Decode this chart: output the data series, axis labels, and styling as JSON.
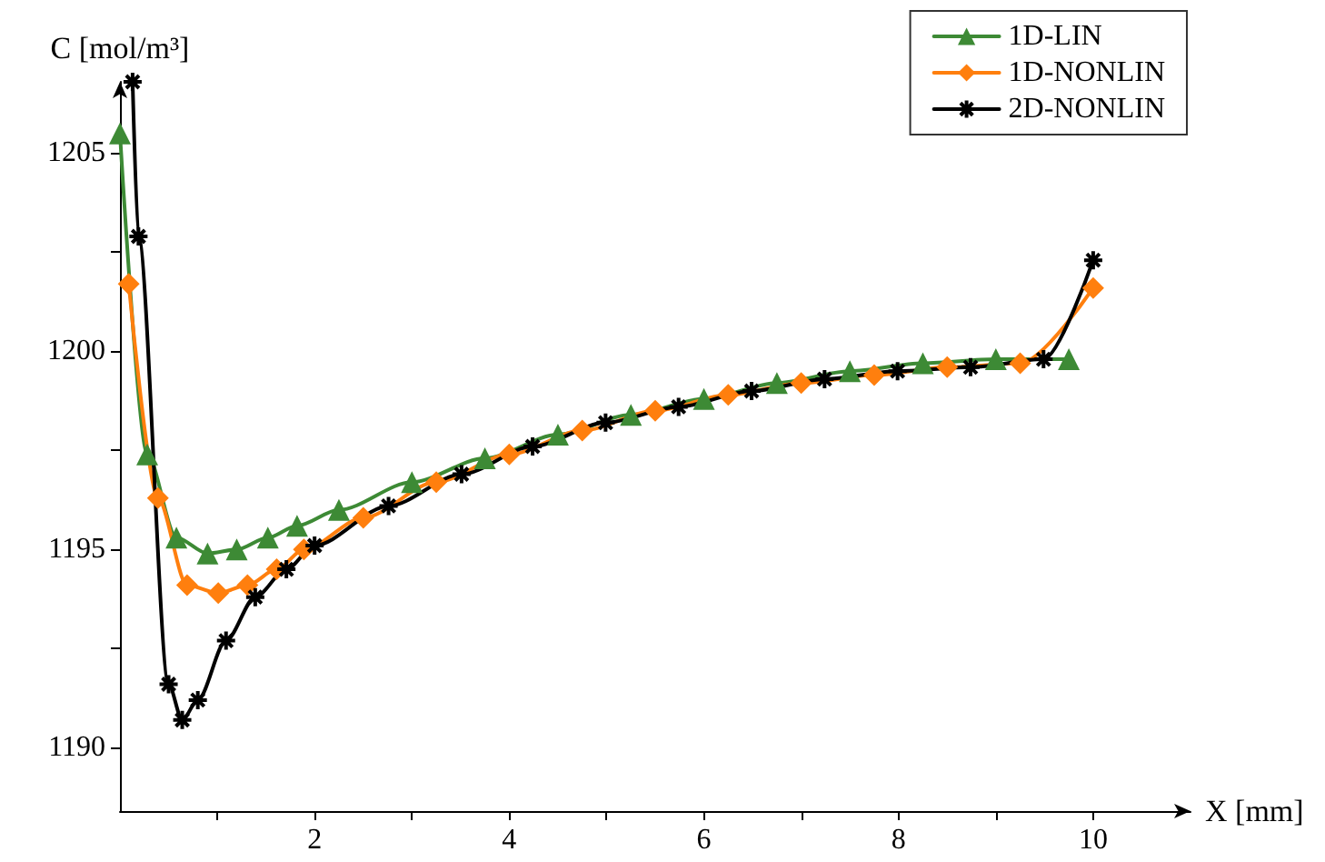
{
  "chart_data": {
    "type": "line",
    "xlabel": "X [mm]",
    "ylabel": "C [mol/m³]",
    "xlim": [
      0,
      11
    ],
    "ylim": [
      1188.4,
      1206.8
    ],
    "xticks": [
      {
        "value": 1,
        "label": null
      },
      2,
      {
        "value": 3,
        "label": null
      },
      4,
      {
        "value": 5,
        "label": null
      },
      6,
      {
        "value": 7,
        "label": null
      },
      8,
      {
        "value": 9,
        "label": null
      },
      10
    ],
    "yticks": [
      1190,
      {
        "value": 1192.5,
        "label": null
      },
      1195,
      {
        "value": 1197.5,
        "label": null
      },
      1200,
      {
        "value": 1202.5,
        "label": null
      },
      1205
    ],
    "grid": false,
    "legend": "top right",
    "series": [
      {
        "name": "1D-LIN",
        "color": "#3d8a35",
        "marker": "triangle",
        "x": [
          0,
          0.28,
          0.58,
          0.9,
          1.2,
          1.52,
          1.82,
          2.25,
          3.0,
          3.75,
          4.5,
          5.25,
          6.0,
          6.75,
          7.5,
          8.25,
          9.0,
          9.75
        ],
        "values": [
          1205.5,
          1197.4,
          1195.3,
          1194.9,
          1195.0,
          1195.3,
          1195.6,
          1196.0,
          1196.7,
          1197.3,
          1197.9,
          1198.4,
          1198.8,
          1199.2,
          1199.5,
          1199.7,
          1199.8,
          1199.8
        ]
      },
      {
        "name": "1D-NONLIN",
        "color": "#ff7f0e",
        "marker": "diamond",
        "x": [
          0.09,
          0.39,
          0.69,
          1.01,
          1.31,
          1.61,
          1.89,
          2.5,
          3.25,
          4.0,
          4.75,
          5.5,
          6.25,
          7.0,
          7.75,
          8.5,
          9.25,
          10.0
        ],
        "values": [
          1201.7,
          1196.3,
          1194.1,
          1193.9,
          1194.1,
          1194.5,
          1195.0,
          1195.8,
          1196.7,
          1197.4,
          1198.0,
          1198.5,
          1198.9,
          1199.2,
          1199.4,
          1199.6,
          1199.7,
          1201.6
        ]
      },
      {
        "name": "2D-NONLIN",
        "color": "#000000",
        "marker": "cross",
        "x": [
          0.13,
          0.19,
          0.5,
          0.64,
          0.8,
          1.09,
          1.39,
          1.71,
          2.0,
          2.76,
          3.51,
          4.24,
          4.99,
          5.74,
          6.49,
          7.24,
          7.99,
          8.74,
          9.49,
          10.0
        ],
        "values": [
          1206.8,
          1202.9,
          1191.6,
          1190.7,
          1191.2,
          1192.7,
          1193.8,
          1194.5,
          1195.1,
          1196.1,
          1196.9,
          1197.6,
          1198.2,
          1198.6,
          1199.0,
          1199.3,
          1199.5,
          1199.6,
          1199.8,
          1202.3
        ]
      }
    ]
  }
}
